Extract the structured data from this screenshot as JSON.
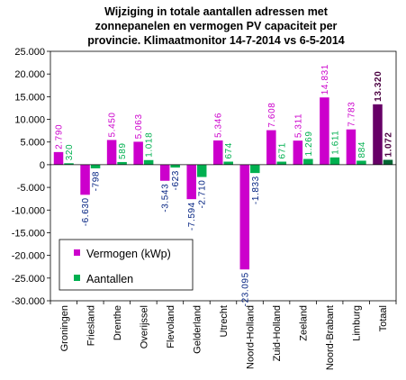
{
  "chart_data": {
    "type": "bar",
    "title_lines": [
      "Wijziging  in totale aantallen adressen met",
      "zonnepanelen en vermogen PV capaciteit per",
      "provincie. Klimaatmonitor  14-7-2014 vs 6-5-2014"
    ],
    "categories": [
      "Groningen",
      "Friesland",
      "Drenthe",
      "Overijssel",
      "Flevoland",
      "Gelderland",
      "Utrecht",
      "Noord-Holland",
      "Zuid-Holland",
      "Zeeland",
      "Noord-Brabant",
      "Limburg",
      "Totaal"
    ],
    "series": [
      {
        "name": "Vermogen (kWp)",
        "values": [
          2790,
          -6630,
          5450,
          5063,
          -3543,
          -7594,
          5346,
          -23095,
          7608,
          5311,
          14831,
          7783,
          13320
        ],
        "labels": [
          "2.790",
          "-6.630",
          "5.450",
          "5.063",
          "-3.543",
          "-7.594",
          "5.346",
          "-23.095",
          "7.608",
          "5.311",
          "14.831",
          "7.783",
          "13.320"
        ],
        "color": "#CC00CC",
        "total_color": "#660066",
        "label_color": "#CC00CC"
      },
      {
        "name": "Aantallen",
        "values": [
          320,
          -798,
          589,
          1018,
          -623,
          -2710,
          674,
          -1833,
          671,
          1269,
          1611,
          884,
          1072
        ],
        "labels": [
          "320",
          "-798",
          "589",
          "1.018",
          "-623",
          "-2.710",
          "674",
          "-1.833",
          "671",
          "1.269",
          "1.611",
          "884",
          "1.072"
        ],
        "color": "#00B050",
        "total_color": "#006633",
        "label_color": "#00B050"
      }
    ],
    "neg_label_color": "#002080",
    "total_label_color": "#4a0040",
    "y_ticks": [
      "25.000",
      "20.000",
      "15.000",
      "10.000",
      "5.000",
      "0",
      "-5.000",
      "-10.000",
      "-15.000",
      "-20.000",
      "-25.000",
      "-30.000"
    ],
    "ylim": [
      -30000,
      25000
    ],
    "ystep": 5000,
    "grid": false,
    "legend_position": "bottom-left"
  }
}
